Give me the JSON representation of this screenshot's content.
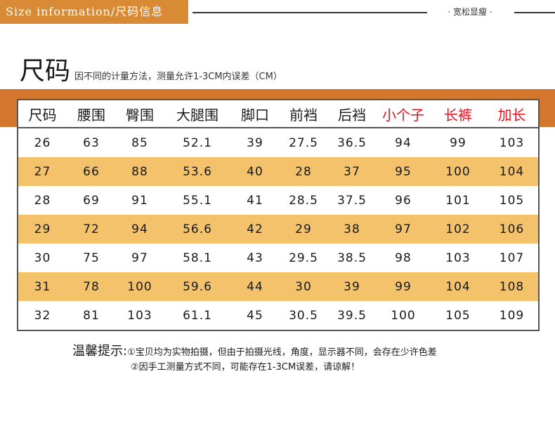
{
  "banner": {
    "tag": "Size information/尺码信息",
    "right_label": "· 宽松显瘦 ·"
  },
  "heading": {
    "title": "尺码",
    "note": "因不同的计量方法，测量允许1-3CM内误差（CM）"
  },
  "colors": {
    "banner": "#d98a35",
    "band": "#d5762e",
    "row_stripe": "#f3c26b",
    "highlight_header": "#e0141e"
  },
  "table": {
    "headers": [
      "尺码",
      "腰围",
      "臀围",
      "大腿围",
      "脚口",
      "前裆",
      "后裆",
      "小个子",
      "长裤",
      "加长"
    ],
    "rows": [
      [
        "26",
        "63",
        "85",
        "52.1",
        "39",
        "27.5",
        "36.5",
        "94",
        "99",
        "103"
      ],
      [
        "27",
        "66",
        "88",
        "53.6",
        "40",
        "28",
        "37",
        "95",
        "100",
        "104"
      ],
      [
        "28",
        "69",
        "91",
        "55.1",
        "41",
        "28.5",
        "37.5",
        "96",
        "101",
        "105"
      ],
      [
        "29",
        "72",
        "94",
        "56.6",
        "42",
        "29",
        "38",
        "97",
        "102",
        "106"
      ],
      [
        "30",
        "75",
        "97",
        "58.1",
        "43",
        "29.5",
        "38.5",
        "98",
        "103",
        "107"
      ],
      [
        "31",
        "78",
        "100",
        "59.6",
        "44",
        "30",
        "39",
        "99",
        "104",
        "108"
      ],
      [
        "32",
        "81",
        "103",
        "61.1",
        "45",
        "30.5",
        "39.5",
        "100",
        "105",
        "109"
      ]
    ]
  },
  "tips": {
    "label": "温馨提示:",
    "line1": "①宝贝均为实物拍摄，但由于拍摄光线，角度，显示器不同，会存在少许色差",
    "line2": "②因手工测量方式不同，可能存在1-3CM误差，请谅解！"
  }
}
